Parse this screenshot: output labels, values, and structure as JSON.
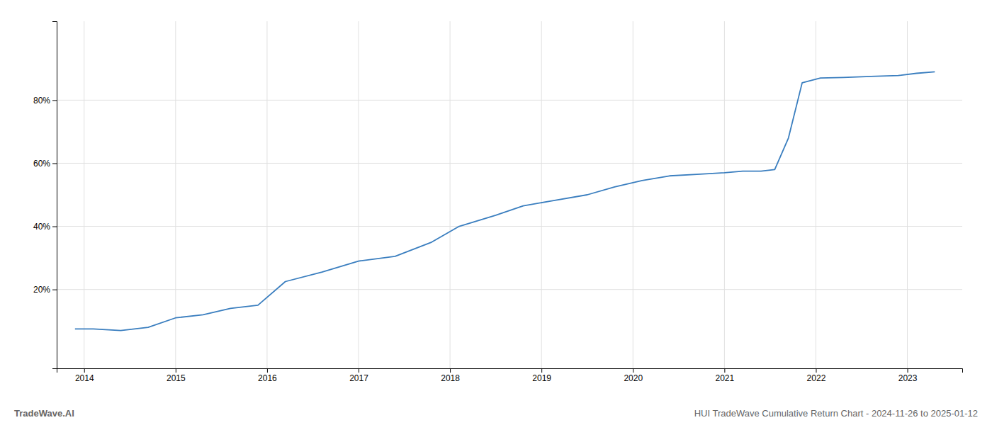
{
  "chart_data": {
    "type": "line",
    "x": [
      2013.9,
      2014.1,
      2014.4,
      2014.7,
      2015.0,
      2015.3,
      2015.6,
      2015.9,
      2016.2,
      2016.6,
      2017.0,
      2017.4,
      2017.8,
      2018.1,
      2018.5,
      2018.8,
      2019.1,
      2019.5,
      2019.8,
      2020.1,
      2020.4,
      2020.7,
      2021.0,
      2021.2,
      2021.4,
      2021.55,
      2021.7,
      2021.85,
      2022.05,
      2022.3,
      2022.6,
      2022.9,
      2023.1,
      2023.3
    ],
    "values": [
      7.5,
      7.5,
      7.0,
      8.0,
      11.0,
      12.0,
      14.0,
      15.0,
      22.5,
      25.5,
      29.0,
      30.5,
      35.0,
      40.0,
      43.5,
      46.5,
      48.0,
      50.0,
      52.5,
      54.5,
      56.0,
      56.5,
      57.0,
      57.5,
      57.5,
      58.0,
      68.0,
      85.5,
      87.0,
      87.2,
      87.5,
      87.8,
      88.5,
      89.0
    ],
    "color": "#3a7ebf",
    "xlim": [
      2013.7,
      2023.6
    ],
    "xticks": [
      2014,
      2015,
      2016,
      2017,
      2018,
      2019,
      2020,
      2021,
      2022,
      2023
    ],
    "ylim": [
      -5,
      105
    ],
    "yticks": [
      {
        "value": 20,
        "label": "20%"
      },
      {
        "value": 40,
        "label": "40%"
      },
      {
        "value": 60,
        "label": "60%"
      },
      {
        "value": 80,
        "label": "80%"
      }
    ],
    "grid": true,
    "annotations": [
      "TradeWave.AI",
      "HUI TradeWave Cumulative Return Chart - 2024-11-26 to 2025-01-12"
    ]
  }
}
